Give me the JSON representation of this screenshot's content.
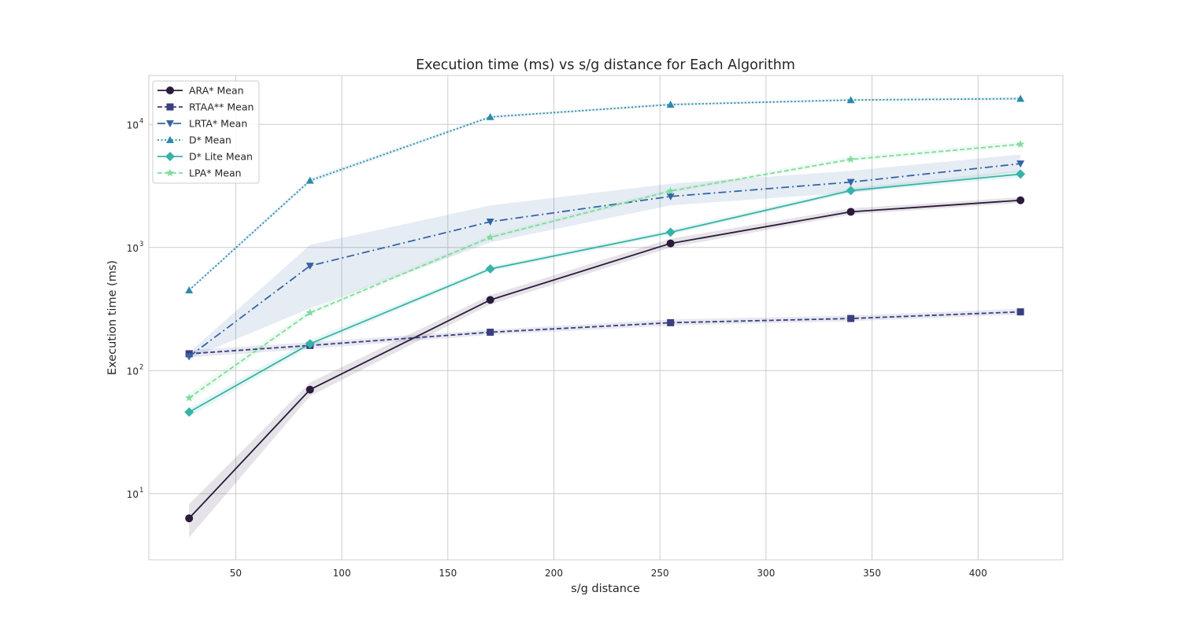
{
  "chart_data": {
    "type": "line",
    "title": "Execution time (ms) vs s/g distance for Each Algorithm",
    "xlabel": "s/g distance",
    "ylabel": "Execution time (ms)",
    "yscale": "log",
    "xlim": [
      9,
      440
    ],
    "ylim": [
      2.9,
      25000
    ],
    "xticks": [
      50,
      100,
      150,
      200,
      250,
      300,
      350,
      400
    ],
    "yticks": [
      10,
      100,
      1000,
      10000
    ],
    "ytick_labels": [
      {
        "base": "10",
        "exp": "1"
      },
      {
        "base": "10",
        "exp": "2"
      },
      {
        "base": "10",
        "exp": "3"
      },
      {
        "base": "10",
        "exp": "4"
      }
    ],
    "grid": true,
    "legend_position": "top-left",
    "x": [
      28,
      85,
      170,
      255,
      340,
      420
    ],
    "series": [
      {
        "name": "ARA* Mean",
        "color": "#2b1a3a",
        "dash": "",
        "marker": "circle",
        "values": [
          6.3,
          70,
          375,
          1080,
          1950,
          2420
        ],
        "lower": [
          4.4,
          62,
          345,
          1000,
          1850,
          2300
        ],
        "upper": [
          8.2,
          80,
          410,
          1180,
          2080,
          2560
        ]
      },
      {
        "name": "RTAA** Mean",
        "color": "#3b3f80",
        "dash": "6,3",
        "marker": "square",
        "values": [
          137,
          160,
          205,
          245,
          265,
          300
        ],
        "lower": [
          128,
          150,
          195,
          232,
          252,
          285
        ],
        "upper": [
          146,
          170,
          215,
          260,
          280,
          318
        ]
      },
      {
        "name": "LRTA* Mean",
        "color": "#3465a4",
        "dash": "10,4,2,4",
        "marker": "triangle-down",
        "values": [
          130,
          710,
          1620,
          2600,
          3400,
          4800
        ],
        "lower": [
          125,
          320,
          1100,
          2200,
          2800,
          4100
        ],
        "upper": [
          140,
          1050,
          2200,
          3300,
          4200,
          5700
        ]
      },
      {
        "name": "D* Mean",
        "color": "#2e8aab",
        "dash": "2,2.5",
        "marker": "triangle-up",
        "values": [
          450,
          3500,
          11500,
          14500,
          15800,
          16200
        ],
        "lower": [
          440,
          3350,
          11200,
          14200,
          15400,
          15800
        ],
        "upper": [
          465,
          3650,
          11800,
          14900,
          16200,
          16700
        ]
      },
      {
        "name": "D* Lite Mean",
        "color": "#38b2a7",
        "dash": "",
        "marker": "diamond",
        "values": [
          46,
          165,
          670,
          1330,
          2900,
          3950
        ],
        "lower": [
          42,
          155,
          640,
          1270,
          2780,
          3700
        ],
        "upper": [
          50,
          178,
          700,
          1400,
          3050,
          4250
        ]
      },
      {
        "name": "LPA* Mean",
        "color": "#7fdb9e",
        "dash": "6,3",
        "marker": "star",
        "values": [
          60,
          295,
          1210,
          2880,
          5200,
          6900
        ],
        "lower": [
          55,
          280,
          1160,
          2780,
          5000,
          6600
        ],
        "upper": [
          66,
          315,
          1270,
          3000,
          5500,
          7300
        ]
      }
    ]
  }
}
